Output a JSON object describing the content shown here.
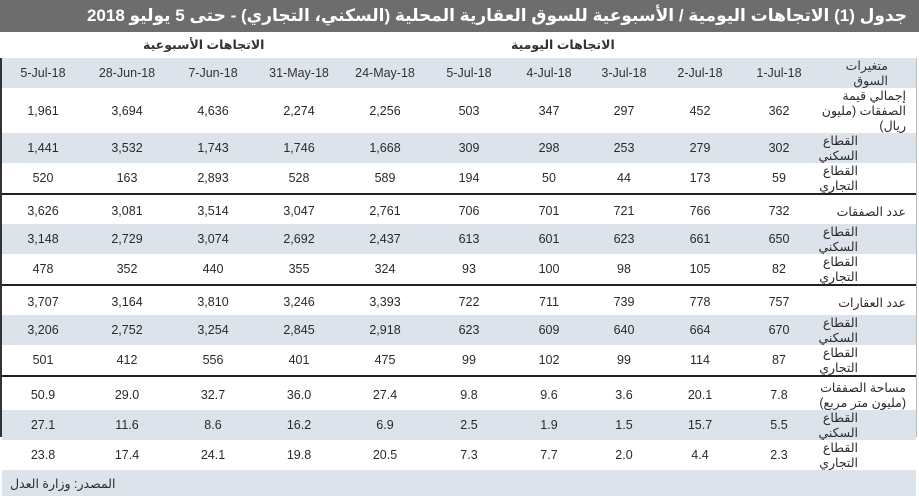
{
  "title": "جدول (1) الاتجاهات اليومية / الأسبوعية للسوق العقارية المحلية (السكني، التجاري) - حتى 5 يوليو 2018",
  "groups": {
    "weekly": "الاتجاهات الأسبوعية",
    "daily": "الاتجاهات اليومية"
  },
  "columns": {
    "label": "متغيرات السوق",
    "daily": [
      "1-Jul-18",
      "2-Jul-18",
      "3-Jul-18",
      "4-Jul-18",
      "5-Jul-18"
    ],
    "weekly": [
      "24-May-18",
      "31-May-18",
      "7-Jun-18",
      "28-Jun-18",
      "5-Jul-18"
    ]
  },
  "sections": [
    {
      "rows": [
        {
          "label": "إجمالي قيمة الصفقات (مليون ريال)",
          "daily": [
            "362",
            "452",
            "297",
            "347",
            "503"
          ],
          "weekly": [
            "2,256",
            "2,274",
            "4,636",
            "3,694",
            "1,961"
          ]
        },
        {
          "label": "القطاع السكني",
          "daily": [
            "302",
            "279",
            "253",
            "298",
            "309"
          ],
          "weekly": [
            "1,668",
            "1,746",
            "1,743",
            "3,532",
            "1,441"
          ]
        },
        {
          "label": "القطاع التجاري",
          "daily": [
            "59",
            "173",
            "44",
            "50",
            "194"
          ],
          "weekly": [
            "589",
            "528",
            "2,893",
            "163",
            "520"
          ]
        }
      ]
    },
    {
      "rows": [
        {
          "label": "عدد الصفقات",
          "daily": [
            "732",
            "766",
            "721",
            "701",
            "706"
          ],
          "weekly": [
            "2,761",
            "3,047",
            "3,514",
            "3,081",
            "3,626"
          ]
        },
        {
          "label": "القطاع السكني",
          "daily": [
            "650",
            "661",
            "623",
            "601",
            "613"
          ],
          "weekly": [
            "2,437",
            "2,692",
            "3,074",
            "2,729",
            "3,148"
          ]
        },
        {
          "label": "القطاع التجاري",
          "daily": [
            "82",
            "105",
            "98",
            "100",
            "93"
          ],
          "weekly": [
            "324",
            "355",
            "440",
            "352",
            "478"
          ]
        }
      ]
    },
    {
      "rows": [
        {
          "label": "عدد العقارات",
          "daily": [
            "757",
            "778",
            "739",
            "711",
            "722"
          ],
          "weekly": [
            "3,393",
            "3,246",
            "3,810",
            "3,164",
            "3,707"
          ]
        },
        {
          "label": "القطاع السكني",
          "daily": [
            "670",
            "664",
            "640",
            "609",
            "623"
          ],
          "weekly": [
            "2,918",
            "2,845",
            "3,254",
            "2,752",
            "3,206"
          ]
        },
        {
          "label": "القطاع التجاري",
          "daily": [
            "87",
            "114",
            "99",
            "102",
            "99"
          ],
          "weekly": [
            "475",
            "401",
            "556",
            "412",
            "501"
          ]
        }
      ]
    },
    {
      "rows": [
        {
          "label": "مساحة الصفقات (مليون متر مربع)",
          "daily": [
            "7.8",
            "20.1",
            "3.6",
            "9.6",
            "9.8"
          ],
          "weekly": [
            "27.4",
            "36.0",
            "32.7",
            "29.0",
            "50.9"
          ]
        },
        {
          "label": "القطاع السكني",
          "daily": [
            "5.5",
            "15.7",
            "1.5",
            "1.9",
            "2.5"
          ],
          "weekly": [
            "6.9",
            "16.2",
            "8.6",
            "11.6",
            "27.1"
          ]
        },
        {
          "label": "القطاع التجاري",
          "daily": [
            "2.3",
            "4.4",
            "2.0",
            "7.7",
            "7.3"
          ],
          "weekly": [
            "20.5",
            "19.8",
            "24.1",
            "17.4",
            "23.8"
          ]
        }
      ]
    }
  ],
  "source": "المصدر: وزارة العدل",
  "colors": {
    "title_bg": "#6d6d6d",
    "shade": "#dde3ea",
    "rule": "#222222"
  }
}
